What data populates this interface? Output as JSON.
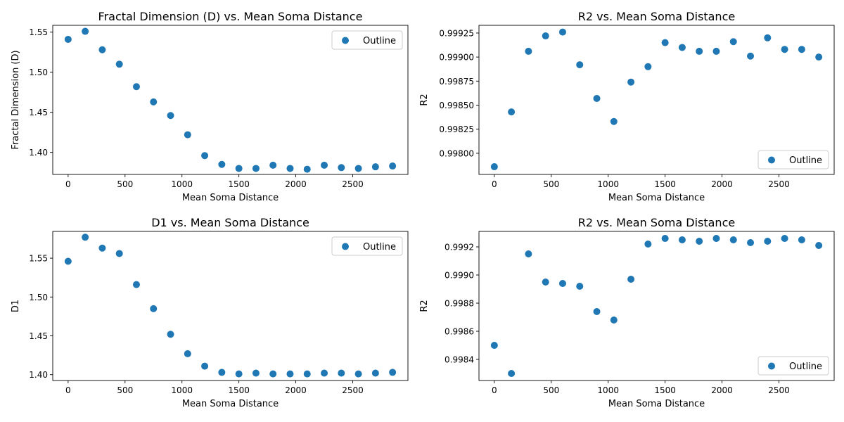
{
  "chart_data": [
    {
      "type": "scatter",
      "title": "Fractal Dimension (D) vs. Mean Soma Distance",
      "xlabel": "Mean Soma Distance",
      "ylabel": "Fractal Dimension (D)",
      "xlim": [
        -135,
        2985
      ],
      "ylim": [
        1.3725,
        1.5585
      ],
      "xticks": [
        0,
        500,
        1000,
        1500,
        2000,
        2500
      ],
      "xtick_labels": [
        "0",
        "500",
        "1000",
        "1500",
        "2000",
        "2500"
      ],
      "yticks": [
        1.4,
        1.45,
        1.5,
        1.55
      ],
      "ytick_labels": [
        "1.40",
        "1.45",
        "1.50",
        "1.55"
      ],
      "legend": "upper right",
      "grid": false,
      "color": "#1f77b4",
      "series": [
        {
          "name": "Outline",
          "x": [
            0,
            150,
            300,
            450,
            600,
            750,
            900,
            1050,
            1200,
            1350,
            1500,
            1650,
            1800,
            1950,
            2100,
            2250,
            2400,
            2550,
            2700,
            2850
          ],
          "y": [
            1.541,
            1.551,
            1.528,
            1.51,
            1.482,
            1.463,
            1.446,
            1.422,
            1.396,
            1.385,
            1.38,
            1.38,
            1.384,
            1.38,
            1.379,
            1.384,
            1.381,
            1.38,
            1.382,
            1.383
          ]
        }
      ]
    },
    {
      "type": "scatter",
      "title": "R2 vs. Mean Soma Distance",
      "xlabel": "Mean Soma Distance",
      "ylabel": "R2",
      "xlim": [
        -135,
        2985
      ],
      "ylim": [
        0.99778,
        0.99933
      ],
      "xticks": [
        0,
        500,
        1000,
        1500,
        2000,
        2500
      ],
      "xtick_labels": [
        "0",
        "500",
        "1000",
        "1500",
        "2000",
        "2500"
      ],
      "yticks": [
        0.998,
        0.99825,
        0.9985,
        0.99875,
        0.999,
        0.99925
      ],
      "ytick_labels": [
        "0.99800",
        "0.99825",
        "0.99850",
        "0.99875",
        "0.99900",
        "0.99925"
      ],
      "legend": "lower right",
      "grid": false,
      "color": "#1f77b4",
      "series": [
        {
          "name": "Outline",
          "x": [
            0,
            150,
            300,
            450,
            600,
            750,
            900,
            1050,
            1200,
            1350,
            1500,
            1650,
            1800,
            1950,
            2100,
            2250,
            2400,
            2550,
            2700,
            2850
          ],
          "y": [
            0.99786,
            0.99843,
            0.99906,
            0.99922,
            0.99926,
            0.99892,
            0.99857,
            0.99833,
            0.99874,
            0.9989,
            0.99915,
            0.9991,
            0.99906,
            0.99906,
            0.99916,
            0.99901,
            0.9992,
            0.99908,
            0.99908,
            0.999
          ]
        }
      ]
    },
    {
      "type": "scatter",
      "title": "D1 vs. Mean Soma Distance",
      "xlabel": "Mean Soma Distance",
      "ylabel": "D1",
      "xlim": [
        -135,
        2985
      ],
      "ylim": [
        1.3925,
        1.5845
      ],
      "xticks": [
        0,
        500,
        1000,
        1500,
        2000,
        2500
      ],
      "xtick_labels": [
        "0",
        "500",
        "1000",
        "1500",
        "2000",
        "2500"
      ],
      "yticks": [
        1.4,
        1.45,
        1.5,
        1.55
      ],
      "ytick_labels": [
        "1.40",
        "1.45",
        "1.50",
        "1.55"
      ],
      "legend": "upper right",
      "grid": false,
      "color": "#1f77b4",
      "series": [
        {
          "name": "Outline",
          "x": [
            0,
            150,
            300,
            450,
            600,
            750,
            900,
            1050,
            1200,
            1350,
            1500,
            1650,
            1800,
            1950,
            2100,
            2250,
            2400,
            2550,
            2700,
            2850
          ],
          "y": [
            1.546,
            1.577,
            1.563,
            1.556,
            1.516,
            1.485,
            1.452,
            1.427,
            1.411,
            1.403,
            1.401,
            1.402,
            1.401,
            1.401,
            1.401,
            1.402,
            1.402,
            1.401,
            1.402,
            1.403
          ]
        }
      ]
    },
    {
      "type": "scatter",
      "title": "R2 vs. Mean Soma Distance",
      "xlabel": "Mean Soma Distance",
      "ylabel": "R2",
      "xlim": [
        -135,
        2985
      ],
      "ylim": [
        0.99825,
        0.99931
      ],
      "xticks": [
        0,
        500,
        1000,
        1500,
        2000,
        2500
      ],
      "xtick_labels": [
        "0",
        "500",
        "1000",
        "1500",
        "2000",
        "2500"
      ],
      "yticks": [
        0.9984,
        0.9986,
        0.9988,
        0.999,
        0.9992
      ],
      "ytick_labels": [
        "0.9984",
        "0.9986",
        "0.9988",
        "0.9990",
        "0.9992"
      ],
      "legend": "lower right",
      "grid": false,
      "color": "#1f77b4",
      "series": [
        {
          "name": "Outline",
          "x": [
            0,
            150,
            300,
            450,
            600,
            750,
            900,
            1050,
            1200,
            1350,
            1500,
            1650,
            1800,
            1950,
            2100,
            2250,
            2400,
            2550,
            2700,
            2850
          ],
          "y": [
            0.9985,
            0.9983,
            0.99915,
            0.99895,
            0.99894,
            0.99892,
            0.99874,
            0.99868,
            0.99897,
            0.99922,
            0.99926,
            0.99925,
            0.99924,
            0.99926,
            0.99925,
            0.99923,
            0.99924,
            0.99926,
            0.99925,
            0.99921
          ]
        }
      ]
    }
  ]
}
